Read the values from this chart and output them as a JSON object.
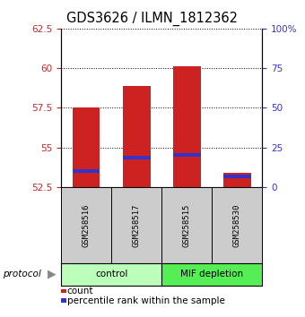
{
  "title": "GDS3626 / ILMN_1812362",
  "samples": [
    "GSM258516",
    "GSM258517",
    "GSM258515",
    "GSM258530"
  ],
  "groups": [
    "control",
    "control",
    "MIF depletion",
    "MIF depletion"
  ],
  "bar_bottoms": [
    52.5,
    52.5,
    52.5,
    52.5
  ],
  "bar_tops": [
    57.5,
    58.9,
    60.1,
    53.4
  ],
  "percentile_values": [
    53.5,
    54.35,
    54.55,
    53.15
  ],
  "ylim_left": [
    52.5,
    62.5
  ],
  "ylim_right": [
    0,
    100
  ],
  "yticks_left": [
    52.5,
    55.0,
    57.5,
    60.0,
    62.5
  ],
  "ytick_labels_left": [
    "52.5",
    "55",
    "57.5",
    "60",
    "62.5"
  ],
  "yticks_right": [
    0,
    25,
    50,
    75,
    100
  ],
  "ytick_labels_right": [
    "0",
    "25",
    "50",
    "75",
    "100%"
  ],
  "bar_color": "#cc2222",
  "percentile_color": "#3333cc",
  "group_colors": {
    "control": "#bbffbb",
    "MIF depletion": "#55ee55"
  },
  "left_tick_color": "#cc2222",
  "right_tick_color": "#3333cc",
  "bar_width": 0.55,
  "sample_box_color": "#cccccc",
  "legend_count_color": "#cc2222",
  "legend_percentile_color": "#3333cc",
  "group_spans": [
    [
      0,
      1,
      "control"
    ],
    [
      2,
      3,
      "MIF depletion"
    ]
  ]
}
